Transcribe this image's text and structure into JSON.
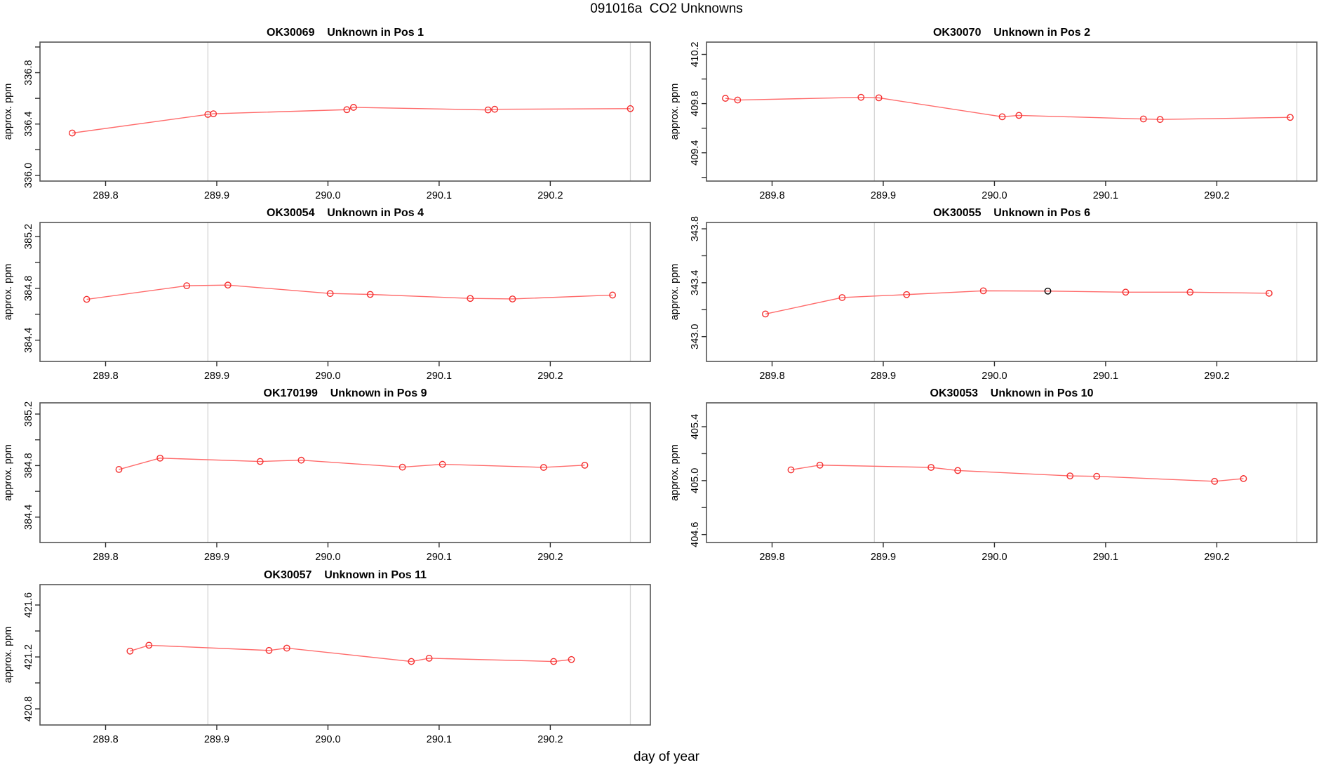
{
  "figure": {
    "title": "091016a  CO2 Unknowns",
    "xlabel": "day of year",
    "background": "#ffffff"
  },
  "colors": {
    "line": "#ff6b6b",
    "point": "#f42f2f",
    "special_point": "#000000",
    "vline": "#d4d4d4",
    "frame": "#545454",
    "tick": "#2e2e2e",
    "text": "#000000"
  },
  "x_axis": {
    "label": "day of year",
    "xlim": [
      289.741,
      290.29
    ],
    "ticks": [
      289.8,
      289.9,
      290.0,
      290.1,
      290.2
    ],
    "vlines": [
      289.892,
      290.272
    ]
  },
  "chart_data": [
    {
      "type": "line",
      "name": "OK30069",
      "title": "OK30069    Unknown in Pos 1",
      "sample_id": "OK30069",
      "position": "Pos 1",
      "ylabel": "approx. ppm",
      "ylim": [
        335.956,
        337.038
      ],
      "y_ticks_all": [
        336.0,
        336.2,
        336.4,
        336.6,
        336.8,
        337.0
      ],
      "y_ticks_labeled": [
        336.0,
        336.4,
        336.8
      ],
      "x": [
        289.77,
        289.892,
        289.897,
        290.017,
        290.023,
        290.144,
        290.15,
        290.272
      ],
      "y": [
        336.33,
        336.475,
        336.48,
        336.512,
        336.53,
        336.51,
        336.515,
        336.52
      ],
      "special_point_index": -1
    },
    {
      "type": "line",
      "name": "OK30070",
      "title": "OK30070    Unknown in Pos 2",
      "sample_id": "OK30070",
      "position": "Pos 2",
      "ylabel": "approx. ppm",
      "ylim": [
        409.17,
        410.3
      ],
      "y_ticks_all": [
        409.2,
        409.4,
        409.6,
        409.8,
        410.0,
        410.2
      ],
      "y_ticks_labeled": [
        409.4,
        409.8,
        410.2
      ],
      "x": [
        289.758,
        289.769,
        289.88,
        289.896,
        290.007,
        290.022,
        290.134,
        290.149,
        290.266
      ],
      "y": [
        409.843,
        409.829,
        409.851,
        409.847,
        409.693,
        409.704,
        409.675,
        409.671,
        409.688
      ],
      "special_point_index": -1
    },
    {
      "type": "line",
      "name": "OK30054",
      "title": "OK30054    Unknown in Pos 4",
      "sample_id": "OK30054",
      "position": "Pos 4",
      "ylabel": "approx. ppm",
      "ylim": [
        384.236,
        385.308
      ],
      "y_ticks_all": [
        384.4,
        384.6,
        384.8,
        385.0,
        385.2
      ],
      "y_ticks_labeled": [
        384.4,
        384.8,
        385.2
      ],
      "x": [
        289.783,
        289.873,
        289.91,
        290.002,
        290.038,
        290.128,
        290.166,
        290.256
      ],
      "y": [
        384.715,
        384.82,
        384.825,
        384.76,
        384.753,
        384.722,
        384.718,
        384.748
      ],
      "special_point_index": -1
    },
    {
      "type": "line",
      "name": "OK30055",
      "title": "OK30055    Unknown in Pos 6",
      "sample_id": "OK30055",
      "position": "Pos 6",
      "ylabel": "approx. ppm",
      "ylim": [
        342.816,
        343.847
      ],
      "y_ticks_all": [
        343.0,
        343.2,
        343.4,
        343.6,
        343.8
      ],
      "y_ticks_labeled": [
        343.0,
        343.4,
        343.8
      ],
      "x": [
        289.794,
        289.863,
        289.921,
        289.99,
        290.048,
        290.118,
        290.176,
        290.247
      ],
      "y": [
        343.168,
        343.29,
        343.312,
        343.34,
        343.338,
        343.33,
        343.33,
        343.322
      ],
      "special_point_index": 4
    },
    {
      "type": "line",
      "name": "OK170199",
      "title": "OK170199    Unknown in Pos 9",
      "sample_id": "OK170199",
      "position": "Pos 9",
      "ylabel": "approx. ppm",
      "ylim": [
        384.203,
        385.287
      ],
      "y_ticks_all": [
        384.4,
        384.6,
        384.8,
        385.0,
        385.2
      ],
      "y_ticks_labeled": [
        384.4,
        384.8,
        385.2
      ],
      "x": [
        289.812,
        289.849,
        289.939,
        289.976,
        290.067,
        290.103,
        290.194,
        290.231
      ],
      "y": [
        384.77,
        384.858,
        384.832,
        384.842,
        384.788,
        384.81,
        384.786,
        384.803
      ],
      "special_point_index": -1
    },
    {
      "type": "line",
      "name": "OK30053",
      "title": "OK30053    Unknown in Pos 10",
      "sample_id": "OK30053",
      "position": "Pos 10",
      "ylabel": "approx. ppm",
      "ylim": [
        404.541,
        405.577
      ],
      "y_ticks_all": [
        404.6,
        404.8,
        405.0,
        405.2,
        405.4
      ],
      "y_ticks_labeled": [
        404.6,
        405.0,
        405.4
      ],
      "x": [
        289.817,
        289.843,
        289.943,
        289.967,
        290.068,
        290.092,
        290.198,
        290.224
      ],
      "y": [
        405.08,
        405.115,
        405.098,
        405.075,
        405.035,
        405.032,
        404.995,
        405.015
      ],
      "special_point_index": -1
    },
    {
      "type": "line",
      "name": "OK30057",
      "title": "OK30057    Unknown in Pos 11",
      "sample_id": "OK30057",
      "position": "Pos 11",
      "ylabel": "approx. ppm",
      "ylim": [
        420.676,
        421.757
      ],
      "y_ticks_all": [
        420.8,
        421.0,
        421.2,
        421.4,
        421.6
      ],
      "y_ticks_labeled": [
        420.8,
        421.2,
        421.6
      ],
      "x": [
        289.822,
        289.839,
        289.947,
        289.963,
        290.075,
        290.091,
        290.203,
        290.219
      ],
      "y": [
        421.245,
        421.29,
        421.25,
        421.268,
        421.165,
        421.19,
        421.165,
        421.18
      ],
      "special_point_index": -1
    }
  ]
}
